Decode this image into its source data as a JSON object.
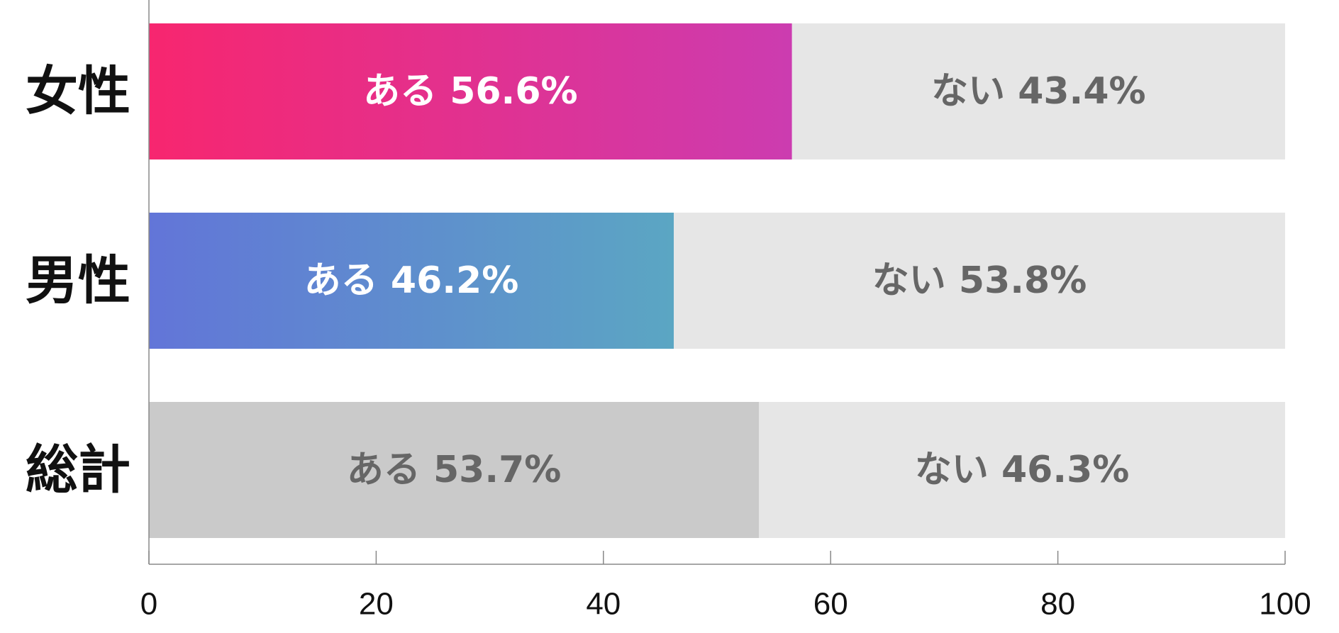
{
  "chart_data": {
    "type": "bar",
    "orientation": "horizontal",
    "stacked": true,
    "categories": [
      "女性",
      "男性",
      "総計"
    ],
    "series": [
      {
        "name": "ある",
        "values": [
          56.6,
          46.2,
          53.7
        ],
        "labels": [
          "ある 56.6%",
          "ある 46.2%",
          "ある 53.7%"
        ]
      },
      {
        "name": "ない",
        "values": [
          43.4,
          53.8,
          46.3
        ],
        "labels": [
          "ない 43.4%",
          "ない 53.8%",
          "ない 46.3%"
        ]
      }
    ],
    "xlim": [
      0,
      100
    ],
    "xticks": [
      0,
      20,
      40,
      60,
      80,
      100
    ],
    "title": "",
    "xlabel": "",
    "ylabel": "",
    "grid": false,
    "legend": "none",
    "colors": {
      "women_gradient": [
        "#f7266f",
        "#cc3cb0"
      ],
      "men_gradient": [
        "#6275d8",
        "#5ba6c3"
      ],
      "total": "#cacaca",
      "remainder": "#e6e6e6",
      "label_light": "#ffffff",
      "label_dark": "#666666"
    }
  }
}
